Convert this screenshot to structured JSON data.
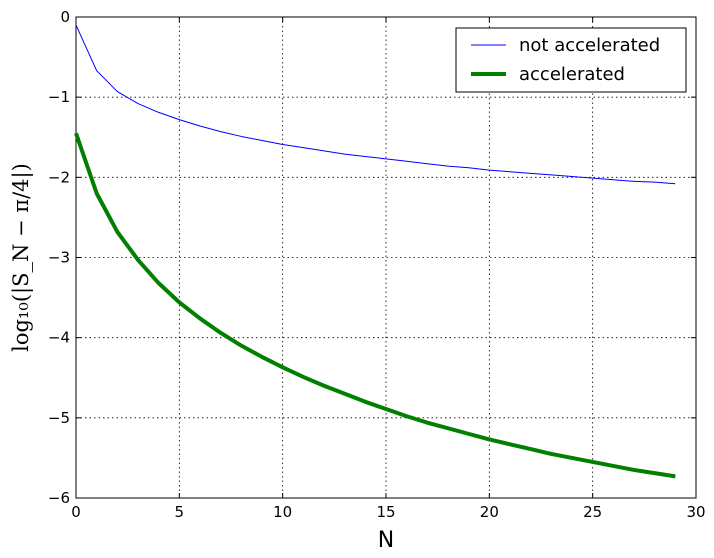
{
  "chart_data": {
    "type": "line",
    "xlabel": "N",
    "ylabel": "log₁₀(|S_N − π/4|)",
    "xlim": [
      0,
      30
    ],
    "ylim": [
      -6,
      0
    ],
    "x_ticks": [
      0,
      5,
      10,
      15,
      20,
      25,
      30
    ],
    "y_ticks": [
      0,
      -1,
      -2,
      -3,
      -4,
      -5,
      -6
    ],
    "x_tick_labels": [
      "0",
      "5",
      "10",
      "15",
      "20",
      "25",
      "30"
    ],
    "y_tick_labels": [
      "0",
      "−1",
      "−2",
      "−3",
      "−4",
      "−5",
      "−6"
    ],
    "grid": true,
    "legend_position": "top-right",
    "x": [
      0,
      1,
      2,
      3,
      4,
      5,
      6,
      7,
      8,
      9,
      10,
      11,
      12,
      13,
      14,
      15,
      16,
      17,
      18,
      19,
      20,
      21,
      22,
      23,
      24,
      25,
      26,
      27,
      28,
      29
    ],
    "series": [
      {
        "name": "not accelerated",
        "color": "#0000ff",
        "line_width": "thin",
        "values": [
          -0.1,
          -0.67,
          -0.93,
          -1.08,
          -1.19,
          -1.28,
          -1.36,
          -1.43,
          -1.49,
          -1.54,
          -1.59,
          -1.63,
          -1.67,
          -1.71,
          -1.74,
          -1.77,
          -1.8,
          -1.83,
          -1.86,
          -1.88,
          -1.91,
          -1.93,
          -1.95,
          -1.97,
          -1.99,
          -2.01,
          -2.03,
          -2.05,
          -2.06,
          -2.08
        ]
      },
      {
        "name": "accelerated",
        "color": "#007f00",
        "line_width": "thick",
        "values": [
          -1.45,
          -2.2,
          -2.68,
          -3.03,
          -3.32,
          -3.56,
          -3.76,
          -3.94,
          -4.1,
          -4.24,
          -4.37,
          -4.49,
          -4.6,
          -4.7,
          -4.8,
          -4.89,
          -4.98,
          -5.06,
          -5.13,
          -5.2,
          -5.27,
          -5.33,
          -5.39,
          -5.45,
          -5.5,
          -5.55,
          -5.6,
          -5.65,
          -5.69,
          -5.73
        ]
      }
    ]
  }
}
